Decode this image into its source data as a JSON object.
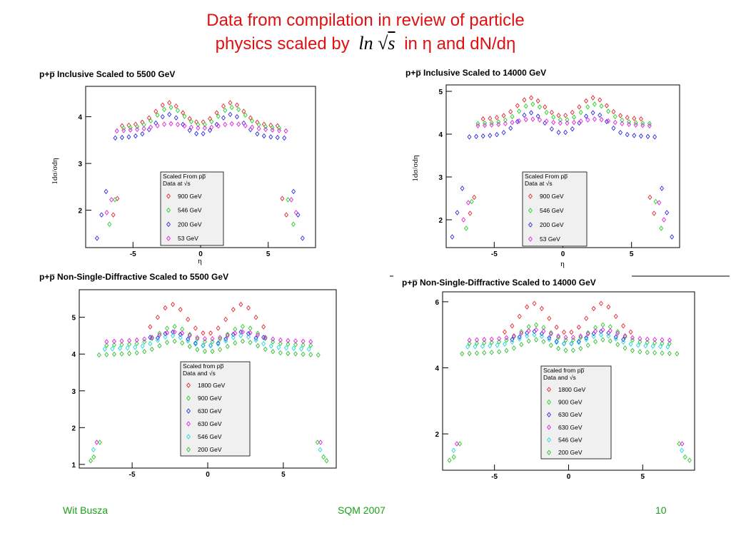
{
  "slide": {
    "title_line1": "Data from compilation in review of particle",
    "title_line2_a": "physics scaled by",
    "title_ln": "ln",
    "title_sqrt": "√",
    "title_s": "s",
    "title_line2_b": "in η and dN/dη",
    "footer_left": "Wit Busza",
    "footer_center": "SQM 2007",
    "footer_right": "10"
  },
  "colors": {
    "title": "#e01010",
    "footer": "#1aa01a",
    "red": "#e8252f",
    "green": "#24d024",
    "blue": "#2a2ae0",
    "magenta": "#e020e0",
    "cyan": "#20d8e0",
    "limegreen": "#30c030"
  },
  "chart_data": [
    {
      "type": "scatter",
      "title": "p+p̅ Inclusive Scaled to 5500 GeV",
      "xlabel": "η",
      "ylabel": "1dσ/σdη",
      "xlim": [
        -8.5,
        8.5
      ],
      "ylim": [
        1.2,
        4.65
      ],
      "xticks": [
        -5,
        0,
        5
      ],
      "yticks": [
        2,
        3,
        4
      ],
      "legend": {
        "title1": "Scaled From pp̅",
        "title2": "Data at √s",
        "placement": "center"
      },
      "series": [
        {
          "name": "900 GeV",
          "color": "red",
          "peak": 4.3,
          "mid": 3.85,
          "edge": 2.6,
          "low": 1.9,
          "xcut": 5.8,
          "xmax": 6.4,
          "ntail": 2
        },
        {
          "name": "546 GeV",
          "color": "green",
          "peak": 4.2,
          "mid": 3.8,
          "edge": 2.75,
          "low": 1.7,
          "xcut": 6.0,
          "xmax": 6.8,
          "ntail": 2
        },
        {
          "name": "200 GeV",
          "color": "blue",
          "peak": 4.05,
          "mid": 3.6,
          "edge": 2.9,
          "low": 1.4,
          "xcut": 6.6,
          "xmax": 7.6,
          "ntail": 3
        },
        {
          "name": "53 GeV",
          "color": "magenta",
          "peak": 3.85,
          "mid": 3.75,
          "edge": 2.5,
          "low": 1.95,
          "xcut": 6.3,
          "xmax": 7.0,
          "ntail": 2
        }
      ]
    },
    {
      "type": "scatter",
      "title": "p+p̅ Inclusive Scaled to 14000 GeV",
      "xlabel": "η",
      "ylabel": "1dσ/σdη",
      "xlim": [
        -8.5,
        8.5
      ],
      "ylim": [
        1.35,
        5.15
      ],
      "xticks": [
        -5,
        0,
        5
      ],
      "yticks": [
        2,
        3,
        4,
        5
      ],
      "legend": {
        "title1": "Scaled From pp̅",
        "title2": "Data at √s",
        "placement": "center"
      },
      "series": [
        {
          "name": "900 GeV",
          "color": "red",
          "peak": 4.85,
          "mid": 4.4,
          "edge": 2.9,
          "low": 2.15,
          "xcut": 6.1,
          "xmax": 6.7,
          "ntail": 2
        },
        {
          "name": "546 GeV",
          "color": "green",
          "peak": 4.7,
          "mid": 4.3,
          "edge": 3.05,
          "low": 1.8,
          "xcut": 6.3,
          "xmax": 7.1,
          "ntail": 2
        },
        {
          "name": "200 GeV",
          "color": "blue",
          "peak": 4.5,
          "mid": 4.0,
          "edge": 3.3,
          "low": 1.6,
          "xcut": 6.9,
          "xmax": 8.0,
          "ntail": 3
        },
        {
          "name": "53 GeV",
          "color": "magenta",
          "peak": 4.35,
          "mid": 4.25,
          "edge": 2.8,
          "low": 2.0,
          "xcut": 6.6,
          "xmax": 7.3,
          "ntail": 2
        }
      ]
    },
    {
      "type": "scatter",
      "title": "p+p̅ Non-Single-Diffractive Scaled to 5500 GeV",
      "xlabel": "",
      "ylabel": "",
      "xlim": [
        -8.5,
        8.5
      ],
      "ylim": [
        0.9,
        5.75
      ],
      "xticks": [
        -5,
        0,
        5
      ],
      "yticks": [
        1,
        2,
        3,
        4,
        5
      ],
      "legend": {
        "title1": "Scaled from pp̅",
        "title2": "Data and √s",
        "placement": "center"
      },
      "series": [
        {
          "name": "1800 GeV",
          "color": "red",
          "peak": 5.35,
          "mid": 4.5,
          "edge": 3.9,
          "low": 3.0,
          "xcut": 4.2,
          "xmax": 4.2,
          "ntail": 0
        },
        {
          "name": "900 GeV",
          "color": "green",
          "peak": 4.75,
          "mid": 4.3,
          "edge": 2.0,
          "low": 1.2,
          "xcut": 6.8,
          "xmax": 7.6,
          "ntail": 2
        },
        {
          "name": "630 GeV",
          "color": "blue",
          "peak": 4.6,
          "mid": 4.2,
          "edge": 4.5,
          "low": 4.4,
          "xcut": 3.9,
          "xmax": 3.9,
          "ntail": 0
        },
        {
          "name": "630 GeV",
          "color": "magenta",
          "peak": 4.6,
          "mid": 4.4,
          "edge": 2.05,
          "low": 1.6,
          "xcut": 6.9,
          "xmax": 7.4,
          "ntail": 1
        },
        {
          "name": "546 GeV",
          "color": "cyan",
          "peak": 4.5,
          "mid": 4.2,
          "edge": 1.75,
          "low": 1.4,
          "xcut": 7.0,
          "xmax": 7.5,
          "ntail": 1
        },
        {
          "name": "200 GeV",
          "color": "limegreen",
          "peak": 4.35,
          "mid": 4.05,
          "edge": 1.6,
          "low": 1.1,
          "xcut": 7.3,
          "xmax": 7.8,
          "ntail": 1
        }
      ]
    },
    {
      "type": "scatter",
      "title": "p+p̅ Non-Single-Diffractive Scaled to 14000 GeV",
      "xlabel": "",
      "ylabel": "",
      "xlim": [
        -8.5,
        8.5
      ],
      "ylim": [
        0.9,
        6.3
      ],
      "xticks": [
        -5,
        0,
        5
      ],
      "yticks": [
        2,
        4,
        6
      ],
      "legend": {
        "title1": "Scaled from pp̅",
        "title2": "Data and √s",
        "placement": "center"
      },
      "series": [
        {
          "name": "1800 GeV",
          "color": "red",
          "peak": 5.95,
          "mid": 5.0,
          "edge": 4.2,
          "low": 3.2,
          "xcut": 4.5,
          "xmax": 4.5,
          "ntail": 0
        },
        {
          "name": "900 GeV",
          "color": "green",
          "peak": 5.3,
          "mid": 4.8,
          "edge": 2.1,
          "low": 1.3,
          "xcut": 7.0,
          "xmax": 7.8,
          "ntail": 2
        },
        {
          "name": "630 GeV",
          "color": "blue",
          "peak": 5.1,
          "mid": 4.7,
          "edge": 4.9,
          "low": 4.8,
          "xcut": 4.0,
          "xmax": 4.0,
          "ntail": 0
        },
        {
          "name": "630 GeV",
          "color": "magenta",
          "peak": 5.15,
          "mid": 4.9,
          "edge": 2.2,
          "low": 1.7,
          "xcut": 7.1,
          "xmax": 7.6,
          "ntail": 1
        },
        {
          "name": "546 GeV",
          "color": "cyan",
          "peak": 5.0,
          "mid": 4.7,
          "edge": 1.9,
          "low": 1.5,
          "xcut": 7.2,
          "xmax": 7.7,
          "ntail": 1
        },
        {
          "name": "200 GeV",
          "color": "limegreen",
          "peak": 4.85,
          "mid": 4.5,
          "edge": 1.7,
          "low": 1.2,
          "xcut": 7.5,
          "xmax": 8.1,
          "ntail": 1
        }
      ]
    }
  ]
}
